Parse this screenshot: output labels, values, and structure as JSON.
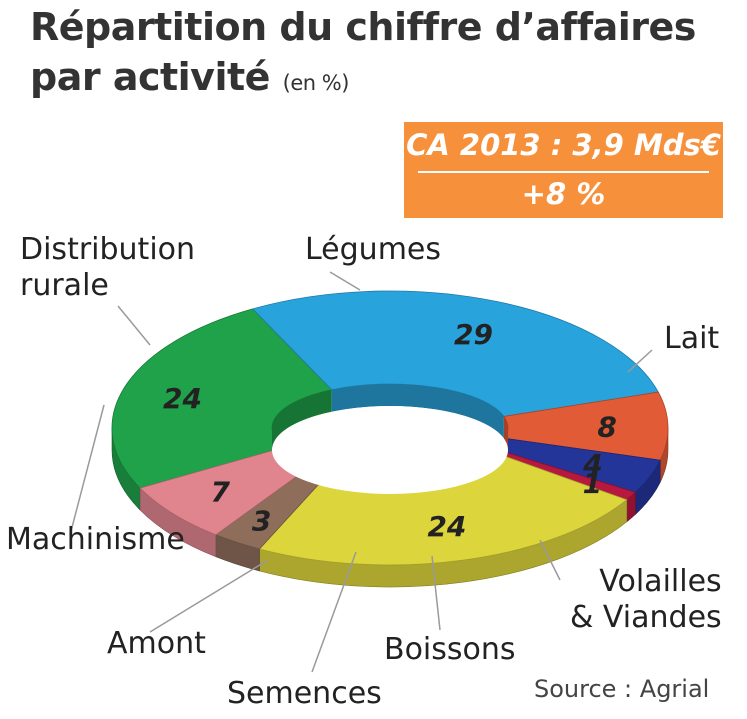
{
  "title": {
    "line1": "Répartition du chiffre d’affaires",
    "line2": "par activité",
    "unit": "(en %)"
  },
  "ca_box": {
    "line1": "CA 2013 : 3,9 Mds€",
    "line2": "+8 %"
  },
  "source": "Source : Agrial",
  "colors": {
    "orange_box": "#f7903b",
    "legumes": "#1fa24a",
    "lait": "#29a3dc",
    "volailles": "#e15b36",
    "boissons": "#24359a",
    "semences": "#b7183f",
    "amont": "#dcd53c",
    "machinisme": "#8e6d5b",
    "distribution": "#e0858e"
  },
  "chart_data": {
    "type": "pie",
    "style": "3d-donut",
    "unit": "%",
    "slices": [
      {
        "label": "Légumes",
        "value": 24,
        "color": "#1fa24a"
      },
      {
        "label": "Lait",
        "value": 29,
        "color": "#29a3dc"
      },
      {
        "label": "Volailles & Viandes",
        "value": 8,
        "color": "#e15b36"
      },
      {
        "label": "Boissons",
        "value": 4,
        "color": "#24359a"
      },
      {
        "label": "Semences",
        "value": 1,
        "color": "#b7183f"
      },
      {
        "label": "Amont",
        "value": 24,
        "color": "#dcd53c"
      },
      {
        "label": "Machinisme",
        "value": 3,
        "color": "#8e6d5b"
      },
      {
        "label": "Distribution rurale",
        "value": 7,
        "color": "#e0858e"
      }
    ]
  },
  "labels": {
    "distribution_line1": "Distribution",
    "distribution_line2": "rurale",
    "legumes": "Légumes",
    "lait": "Lait",
    "machinisme": "Machinisme",
    "amont": "Amont",
    "semences": "Semences",
    "boissons": "Boissons",
    "volailles_line1": "Volailles",
    "volailles_line2": "& Viandes"
  }
}
